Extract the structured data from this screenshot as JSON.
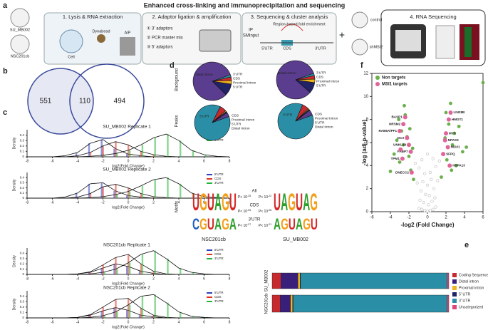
{
  "a": {
    "label": "a",
    "title": "Enhanced cross-linking and immunoprecipitation and sequencing",
    "dishes": [
      "SU_MB002",
      "NSC201cb"
    ],
    "steps": [
      "1. Lysis & RNA extraction",
      "2. Adaptor ligation & amplification",
      "3. Sequencing & cluster analysis",
      "4. RNA Sequencing"
    ],
    "step1_labels": [
      "Cell",
      "Dynabead",
      "AIP"
    ],
    "step2_items": [
      "① 3' adaptors",
      "② PCR master mix",
      "③ 5' adaptors"
    ],
    "step3_title": "Region-based fold enrichment",
    "step3_tracks": [
      "IP",
      "SMInput"
    ],
    "step3_regions": [
      "5'UTR",
      "CDS",
      "3'UTR"
    ],
    "plus": "+",
    "dishes2": [
      "control",
      "shMSI2"
    ]
  },
  "b": {
    "label": "b",
    "values": [
      551,
      110,
      494
    ]
  },
  "c": {
    "label": "c",
    "x": [
      -8,
      -7,
      -6,
      -5,
      -4,
      -3,
      -2,
      -1,
      0,
      1,
      2,
      3,
      4,
      5,
      6,
      7,
      8
    ],
    "xlim": [
      -8,
      8
    ],
    "xticks": [
      -8,
      -6,
      -4,
      -2,
      0,
      2,
      4,
      6,
      8
    ],
    "ylim": [
      0,
      0.5
    ],
    "yticks": [
      0,
      0.1,
      0.2,
      0.3,
      0.4
    ],
    "xlabel": "log2(Fold Change)",
    "ylabel": "Density",
    "panels": [
      {
        "title": "SU_MB002 Replicate 1",
        "series": [
          {
            "name": "5'UTR",
            "color": "#2b3fc4",
            "values": [
              0,
              0,
              0,
              0.02,
              0.08,
              0.25,
              0.32,
              0.15,
              0.05,
              0.02,
              0,
              0,
              0,
              0,
              0,
              0,
              0
            ]
          },
          {
            "name": "CDS",
            "color": "#e0321e",
            "values": [
              0,
              0,
              0,
              0,
              0.02,
              0.08,
              0.2,
              0.28,
              0.22,
              0.1,
              0.04,
              0.01,
              0,
              0,
              0,
              0,
              0
            ]
          },
          {
            "name": "3'UTR",
            "color": "#27b43a",
            "values": [
              0,
              0,
              0,
              0,
              0,
              0.01,
              0.03,
              0.06,
              0.12,
              0.22,
              0.35,
              0.42,
              0.3,
              0.12,
              0.04,
              0.01,
              0
            ]
          }
        ]
      },
      {
        "title": "SU_MB002 Replicate 2",
        "series": [
          {
            "name": "5'UTR",
            "color": "#2b3fc4",
            "values": [
              0,
              0,
              0,
              0.02,
              0.1,
              0.28,
              0.3,
              0.14,
              0.05,
              0.02,
              0,
              0,
              0,
              0,
              0,
              0,
              0
            ]
          },
          {
            "name": "CDS",
            "color": "#e0321e",
            "values": [
              0,
              0,
              0,
              0,
              0.02,
              0.09,
              0.22,
              0.27,
              0.2,
              0.09,
              0.03,
              0.01,
              0,
              0,
              0,
              0,
              0
            ]
          },
          {
            "name": "3'UTR",
            "color": "#27b43a",
            "values": [
              0,
              0,
              0,
              0,
              0,
              0.01,
              0.03,
              0.07,
              0.13,
              0.24,
              0.36,
              0.4,
              0.28,
              0.1,
              0.03,
              0.01,
              0
            ]
          }
        ]
      },
      {
        "title": "NSC201cb Replicate 1",
        "series": [
          {
            "name": "5'UTR",
            "color": "#2b3fc4",
            "values": [
              0,
              0,
              0,
              0,
              0.01,
              0.04,
              0.12,
              0.2,
              0.15,
              0.06,
              0.02,
              0,
              0,
              0,
              0,
              0,
              0
            ]
          },
          {
            "name": "CDS",
            "color": "#e0321e",
            "values": [
              0,
              0,
              0,
              0,
              0.01,
              0.05,
              0.18,
              0.32,
              0.38,
              0.2,
              0.06,
              0.01,
              0,
              0,
              0,
              0,
              0
            ]
          },
          {
            "name": "3'UTR",
            "color": "#27b43a",
            "values": [
              0,
              0,
              0,
              0,
              0,
              0.01,
              0.04,
              0.1,
              0.22,
              0.38,
              0.45,
              0.3,
              0.12,
              0.04,
              0.01,
              0,
              0
            ]
          }
        ]
      },
      {
        "title": "NSC201cb Replicate 2",
        "series": [
          {
            "name": "5'UTR",
            "color": "#2b3fc4",
            "values": [
              0,
              0,
              0,
              0,
              0.01,
              0.05,
              0.13,
              0.19,
              0.14,
              0.05,
              0.02,
              0,
              0,
              0,
              0,
              0,
              0
            ]
          },
          {
            "name": "CDS",
            "color": "#e0321e",
            "values": [
              0,
              0,
              0,
              0,
              0.01,
              0.06,
              0.2,
              0.34,
              0.36,
              0.18,
              0.05,
              0.01,
              0,
              0,
              0,
              0,
              0
            ]
          },
          {
            "name": "3'UTR",
            "color": "#27b43a",
            "values": [
              0,
              0,
              0,
              0,
              0,
              0.01,
              0.04,
              0.11,
              0.24,
              0.4,
              0.43,
              0.28,
              0.11,
              0.03,
              0.01,
              0,
              0
            ]
          }
        ]
      }
    ]
  },
  "d": {
    "label": "d",
    "rows": [
      "Background",
      "Peaks",
      "Motifs"
    ],
    "columns": [
      "NSC201cb",
      "SU_MB002"
    ],
    "pie_categories": [
      "3'UTR",
      "CDS",
      "Proximal Intron",
      "5'UTR",
      "Distal Intron"
    ],
    "pie_colors": [
      "#2a8fa6",
      "#c62a2f",
      "#f0b41c",
      "#222266",
      "#5a3d8e"
    ],
    "pies": [
      {
        "values": [
          2,
          3,
          3,
          10,
          82
        ]
      },
      {
        "values": [
          2,
          3,
          3,
          9,
          83
        ]
      },
      {
        "values": [
          88,
          6,
          1,
          1,
          4
        ]
      },
      {
        "values": [
          87,
          6,
          1,
          1,
          5
        ]
      }
    ],
    "motif_rows": [
      {
        "name": "All",
        "p": [
          {
            "base": "P< 10",
            "exp": "-25"
          },
          {
            "base": "P< 10",
            "exp": "-22"
          }
        ]
      },
      {
        "name": "CDS",
        "p": [
          {
            "base": "P< 10",
            "exp": "-05"
          },
          {
            "base": "P< 10",
            "exp": "-08"
          }
        ]
      },
      {
        "name": "3'UTR",
        "p": [
          {
            "base": "P< 10",
            "exp": "-27"
          },
          {
            "base": "P< 10",
            "exp": "-21"
          }
        ]
      }
    ],
    "logos": [
      [
        "UGUAGU",
        "CGUAGA"
      ],
      [
        "UAGUAG",
        "AGUAGU"
      ]
    ]
  },
  "e": {
    "label": "e",
    "rows": [
      "SU_MB002",
      "NSC201cb"
    ],
    "categories": [
      "Coding Sequence",
      "Distal intron",
      "Proximal intron",
      "5' UTR",
      "3' UTR",
      "Uncategorized"
    ],
    "colors": [
      "#c62a2f",
      "#3a1f7a",
      "#f0b41c",
      "#222266",
      "#2a8fa6",
      "#e0457b"
    ],
    "xlim": [
      0,
      100
    ],
    "series": [
      {
        "values": [
          5,
          9.6,
          1.2,
          0.3,
          83,
          0.9
        ]
      },
      {
        "values": [
          4.6,
          5.8,
          1.2,
          0.3,
          87.2,
          0.9
        ]
      }
    ]
  },
  "f": {
    "label": "f",
    "xlim": [
      -6,
      6
    ],
    "xticks": [
      -6,
      -4,
      -2,
      0,
      2,
      4,
      6
    ],
    "ylim": [
      0,
      12
    ],
    "yticks": [
      0,
      2,
      4,
      6,
      8,
      10,
      12
    ],
    "xlabel": "-log2 (Fold Change)",
    "ylabel": "-log (adj-p-value)",
    "background": {
      "color": "#bbbbbb",
      "x": [
        -0.9,
        -0.6,
        -0.3,
        0,
        0.3,
        0.6,
        0.9,
        -0.8,
        -0.4,
        0.1,
        0.5,
        0.8,
        -0.7,
        -0.2,
        0.2,
        0.7,
        -0.5,
        0,
        0.4,
        -1.1,
        1.1,
        -0.3,
        0.3,
        -0.9,
        0.9,
        -0.6,
        0.6,
        0,
        -1.3,
        1.3
      ],
      "values": [
        0.3,
        0.2,
        0.1,
        0.05,
        0.1,
        0.2,
        0.4,
        1,
        0.8,
        0.6,
        0.9,
        1.2,
        1.8,
        1.5,
        1.4,
        2,
        2.6,
        2.3,
        2.8,
        2.5,
        2.7,
        3.3,
        3.4,
        3.8,
        3.9,
        4.5,
        4.6,
        5,
        4.2,
        4.4
      ]
    },
    "series": [
      {
        "name": "Non targets",
        "color": "#6ab04c",
        "x": [
          -4,
          -3.6,
          -3.3,
          -3,
          -2.8,
          -2.6,
          -2.4,
          -2.2,
          -2,
          -1.8,
          -1.6,
          -1.5,
          -3.1,
          -2.5,
          -1.9,
          1.5,
          1.7,
          1.9,
          2.1,
          2.3,
          2.5,
          2.7,
          2.9,
          3.1,
          3.4,
          3.8,
          4.2,
          2,
          2.6,
          6
        ],
        "values": [
          3.5,
          5,
          6.2,
          4.3,
          7,
          5.8,
          8.4,
          6.5,
          4.8,
          3.6,
          5.5,
          2.8,
          8,
          9.2,
          7.2,
          3,
          5,
          6.4,
          4.5,
          7.6,
          9.4,
          5.8,
          6.8,
          4,
          7.4,
          5.2,
          5.6,
          8.6,
          3.6,
          11.2
        ]
      },
      {
        "name": "MSI1 targets",
        "color": "#e0649a",
        "x": [
          -2.4,
          -2.6,
          -3,
          -2.2,
          -2,
          -1.8,
          -2.7,
          -1.7,
          2.5,
          2.3,
          2,
          1.9,
          2.2,
          1.7,
          2.4,
          -2.9
        ],
        "values": [
          8.2,
          7.6,
          7,
          6.4,
          5.8,
          5.2,
          4.6,
          3.4,
          8.6,
          8,
          6.8,
          6.2,
          5.6,
          5,
          4,
          5.4
        ],
        "genes": [
          "BASP1",
          "NRSM2",
          "RAB6A/PF1",
          "DCX",
          "UNKL19",
          "FABP7",
          "TPM1",
          "DNECC2",
          "LIN28B",
          "HMGT1",
          "MYC",
          "NPAS3",
          "NID21",
          "SFPQ",
          "HSPA13",
          null
        ]
      }
    ]
  }
}
